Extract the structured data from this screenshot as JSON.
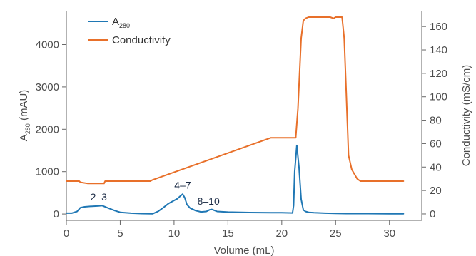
{
  "chart_data": {
    "type": "line",
    "xlabel": "Volume (mL)",
    "ylabel_left": {
      "text": "A",
      "sub": "280",
      "unit": " (mAU)"
    },
    "ylabel_right": "Conductivity (mS/cm)",
    "xlim": [
      0,
      33
    ],
    "ylim_left": [
      -150,
      4800
    ],
    "ylim_right": [
      -5.5,
      173.5
    ],
    "x_ticks": [
      0,
      5,
      10,
      15,
      20,
      25,
      30
    ],
    "y_left_ticks": [
      0,
      1000,
      2000,
      3000,
      4000
    ],
    "y_right_ticks": [
      0,
      20,
      40,
      60,
      80,
      100,
      120,
      140,
      160
    ],
    "grid": false,
    "legend_position": "top-left",
    "series": [
      {
        "name": "A280",
        "legend_label": {
          "text": "A",
          "sub": "280"
        },
        "axis": "left",
        "color": "#1f77b4",
        "x": [
          0,
          0.5,
          1.0,
          1.3,
          1.7,
          2.2,
          3.0,
          3.3,
          3.8,
          4.5,
          5.0,
          6.0,
          7.0,
          8.0,
          8.5,
          9.0,
          9.5,
          10.0,
          10.3,
          10.6,
          10.8,
          11.0,
          11.2,
          11.5,
          12.0,
          12.5,
          13.0,
          13.3,
          13.5,
          13.8,
          14.0,
          15,
          17,
          19,
          20,
          21.0,
          21.1,
          21.2,
          21.4,
          21.6,
          21.8,
          22.0,
          22.2,
          22.5,
          23,
          24,
          25,
          26,
          28,
          30,
          31.3
        ],
        "values": [
          20,
          20,
          60,
          150,
          170,
          180,
          190,
          200,
          150,
          80,
          40,
          20,
          10,
          5,
          60,
          150,
          250,
          320,
          360,
          430,
          470,
          380,
          220,
          140,
          80,
          50,
          60,
          100,
          110,
          80,
          60,
          45,
          35,
          30,
          30,
          25,
          200,
          1000,
          1620,
          1100,
          350,
          100,
          60,
          40,
          30,
          20,
          15,
          10,
          10,
          5,
          5
        ]
      },
      {
        "name": "Conductivity",
        "axis": "right",
        "color": "#e8702a",
        "x": [
          0,
          1.2,
          1.3,
          2.0,
          3.0,
          3.5,
          3.6,
          4.0,
          5.0,
          6.0,
          7.0,
          7.8,
          8.0,
          19.0,
          20.0,
          21.0,
          21.3,
          21.5,
          21.8,
          22.0,
          22.2,
          22.5,
          24.5,
          24.8,
          25.0,
          25.6,
          25.8,
          26.0,
          26.2,
          26.5,
          27.0,
          27.3,
          28,
          30,
          31.3
        ],
        "values": [
          28,
          28,
          27,
          26,
          26,
          26,
          28,
          28,
          28,
          28,
          28,
          28,
          29,
          65,
          65,
          65,
          65,
          90,
          150,
          165,
          167,
          168,
          168,
          167,
          168,
          168,
          150,
          100,
          50,
          38,
          30,
          28,
          28,
          28,
          28
        ]
      }
    ],
    "annotations": [
      {
        "text": "2–3",
        "x": 3.0,
        "y": 250
      },
      {
        "text": "4–7",
        "x": 10.8,
        "y": 530
      },
      {
        "text": "8–10",
        "x": 13.2,
        "y": 150
      }
    ]
  }
}
